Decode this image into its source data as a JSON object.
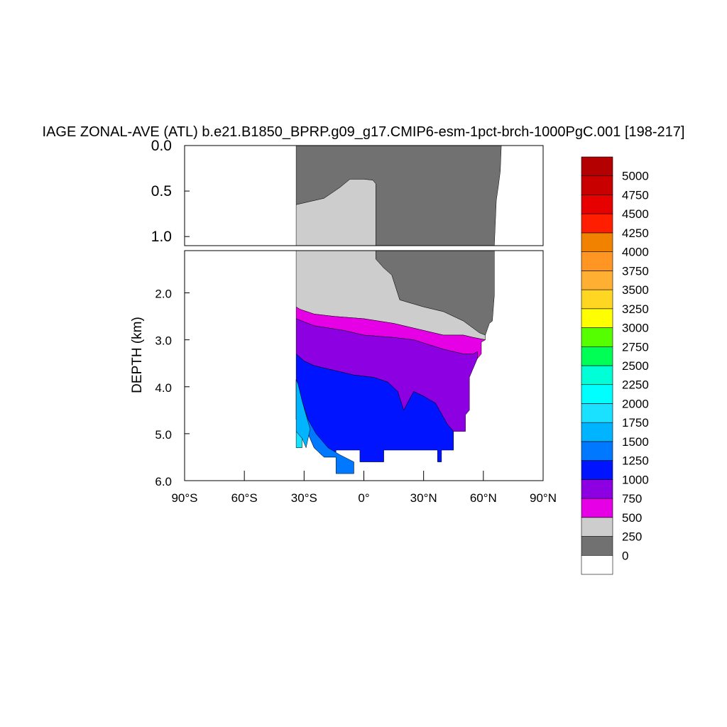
{
  "chart_data": {
    "type": "heatmap",
    "title": "IAGE ZONAL-AVE (ATL) b.e21.B1850_BPRP.g09_g17.CMIP6-esm-1pct-brch-1000PgC.001 [198-217]",
    "ylabel": "DEPTH (km)",
    "xlabel": "",
    "x_range": [
      -90,
      90
    ],
    "y_range_upper_km": [
      0.0,
      1.1
    ],
    "y_range_lower_km": [
      1.1,
      6.0
    ],
    "x_tick_values": [
      -90,
      -60,
      -30,
      0,
      30,
      60,
      90
    ],
    "x_tick_labels": [
      "90°S",
      "60°S",
      "30°S",
      "0°",
      "30°N",
      "60°N",
      "90°N"
    ],
    "y_ticks_upper": [
      {
        "value": 0.0,
        "label": "0.0"
      },
      {
        "value": 0.5,
        "label": "0.5"
      },
      {
        "value": 1.0,
        "label": "1.0"
      }
    ],
    "y_ticks_lower": [
      {
        "value": 2.0,
        "label": "2.0"
      },
      {
        "value": 3.0,
        "label": "3.0"
      },
      {
        "value": 4.0,
        "label": "4.0"
      },
      {
        "value": 5.0,
        "label": "5.0"
      },
      {
        "value": 6.0,
        "label": "6.0"
      }
    ],
    "colorbar": {
      "labels": [
        "0",
        "250",
        "500",
        "750",
        "1000",
        "1250",
        "1500",
        "1750",
        "2000",
        "2250",
        "2500",
        "2750",
        "3000",
        "3250",
        "3500",
        "3750",
        "4000",
        "4250",
        "4500",
        "4750",
        "5000"
      ],
      "colors": [
        "#ffffff",
        "#717171",
        "#cdcdcd",
        "#e600e6",
        "#8c00e1",
        "#0014ff",
        "#0078ff",
        "#00b4ff",
        "#19e1ff",
        "#00ffff",
        "#00ffd7",
        "#00ff55",
        "#55ff00",
        "#ffff00",
        "#ffd723",
        "#ffaf32",
        "#ff9623",
        "#f08200",
        "#ff1e00",
        "#e60000",
        "#c80000",
        "#b40000"
      ]
    },
    "regions": [
      {
        "range": "250-500",
        "color": "#717171",
        "boundary": [
          [
            -34,
            0
          ],
          [
            69,
            0
          ],
          [
            68.5,
            0.28
          ],
          [
            67.5,
            0.45
          ],
          [
            66.5,
            0.6
          ],
          [
            65.5,
            1.1
          ],
          [
            65.5,
            2.05
          ],
          [
            64.5,
            2.6
          ],
          [
            63,
            2.65
          ],
          [
            61,
            2.9
          ],
          [
            58,
            2.85
          ],
          [
            50,
            2.6
          ],
          [
            40,
            2.4
          ],
          [
            30,
            2.3
          ],
          [
            18,
            2.15
          ],
          [
            14,
            1.62
          ],
          [
            10,
            1.47
          ],
          [
            6,
            1.28
          ],
          [
            6,
            0.42
          ],
          [
            4.5,
            0.38
          ],
          [
            0,
            0.37
          ],
          [
            -7,
            0.37
          ],
          [
            -12,
            0.46
          ],
          [
            -20,
            0.58
          ],
          [
            -34,
            0.65
          ]
        ]
      },
      {
        "range": "500-750",
        "color": "#cdcdcd",
        "boundary": [
          [
            -34,
            0.65
          ],
          [
            -20,
            0.58
          ],
          [
            -12,
            0.46
          ],
          [
            -7,
            0.37
          ],
          [
            0,
            0.37
          ],
          [
            4.5,
            0.38
          ],
          [
            6,
            0.42
          ],
          [
            6,
            1.28
          ],
          [
            10,
            1.47
          ],
          [
            14,
            1.62
          ],
          [
            18,
            2.15
          ],
          [
            30,
            2.3
          ],
          [
            40,
            2.4
          ],
          [
            50,
            2.6
          ],
          [
            58,
            2.85
          ],
          [
            61,
            2.9
          ],
          [
            61,
            3.0
          ],
          [
            55,
            2.95
          ],
          [
            50,
            2.9
          ],
          [
            40,
            2.9
          ],
          [
            35,
            2.85
          ],
          [
            25,
            2.75
          ],
          [
            15,
            2.65
          ],
          [
            0,
            2.55
          ],
          [
            -15,
            2.5
          ],
          [
            -25,
            2.45
          ],
          [
            -32,
            2.35
          ],
          [
            -34,
            2.3
          ]
        ]
      },
      {
        "range": "750-1000",
        "color": "#e600e6",
        "boundary": [
          [
            -34,
            2.3
          ],
          [
            -32,
            2.35
          ],
          [
            -25,
            2.45
          ],
          [
            -15,
            2.5
          ],
          [
            0,
            2.55
          ],
          [
            15,
            2.65
          ],
          [
            25,
            2.75
          ],
          [
            35,
            2.85
          ],
          [
            40,
            2.9
          ],
          [
            50,
            2.9
          ],
          [
            55,
            2.95
          ],
          [
            61,
            3.0
          ],
          [
            59,
            3.05
          ],
          [
            59,
            3.3
          ],
          [
            57,
            3.4
          ],
          [
            57,
            3.25
          ],
          [
            55,
            3.3
          ],
          [
            50,
            3.3
          ],
          [
            40,
            3.2
          ],
          [
            25,
            3.0
          ],
          [
            15,
            2.95
          ],
          [
            0,
            2.9
          ],
          [
            -10,
            2.8
          ],
          [
            -25,
            2.7
          ],
          [
            -34,
            2.55
          ]
        ]
      },
      {
        "range": "1000-1250",
        "color": "#8c00e1",
        "boundary": [
          [
            -34,
            2.55
          ],
          [
            -25,
            2.7
          ],
          [
            -10,
            2.8
          ],
          [
            0,
            2.9
          ],
          [
            15,
            2.95
          ],
          [
            25,
            3.0
          ],
          [
            40,
            3.2
          ],
          [
            50,
            3.3
          ],
          [
            55,
            3.3
          ],
          [
            57,
            3.25
          ],
          [
            57,
            3.4
          ],
          [
            55,
            3.6
          ],
          [
            53,
            3.8
          ],
          [
            53,
            4.5
          ],
          [
            51,
            4.6
          ],
          [
            51,
            4.95
          ],
          [
            45,
            4.95
          ],
          [
            42,
            4.8
          ],
          [
            36,
            4.35
          ],
          [
            30,
            4.2
          ],
          [
            25,
            4.1
          ],
          [
            20,
            4.5
          ],
          [
            17,
            4.1
          ],
          [
            12,
            3.9
          ],
          [
            5,
            3.8
          ],
          [
            -5,
            3.75
          ],
          [
            -15,
            3.65
          ],
          [
            -25,
            3.55
          ],
          [
            -30,
            3.45
          ],
          [
            -34,
            3.3
          ]
        ]
      },
      {
        "range": "1250-1500",
        "color": "#0014ff",
        "boundary": [
          [
            -34,
            3.3
          ],
          [
            -30,
            3.45
          ],
          [
            -25,
            3.55
          ],
          [
            -15,
            3.65
          ],
          [
            -5,
            3.75
          ],
          [
            5,
            3.8
          ],
          [
            12,
            3.9
          ],
          [
            17,
            4.1
          ],
          [
            20,
            4.5
          ],
          [
            25,
            4.1
          ],
          [
            30,
            4.2
          ],
          [
            36,
            4.35
          ],
          [
            42,
            4.8
          ],
          [
            45,
            4.95
          ],
          [
            45,
            5.35
          ],
          [
            41,
            5.35
          ],
          [
            41,
            5.35
          ],
          [
            39,
            5.35
          ],
          [
            39,
            5.6
          ],
          [
            37,
            5.6
          ],
          [
            37,
            5.35
          ],
          [
            10,
            5.35
          ],
          [
            10,
            5.6
          ],
          [
            1,
            5.6
          ],
          [
            -2,
            5.6
          ],
          [
            -2,
            5.35
          ],
          [
            -10,
            5.35
          ],
          [
            -10,
            5.35
          ],
          [
            -14,
            5.35
          ],
          [
            -14,
            5.5
          ],
          [
            -20,
            5.5
          ],
          [
            -25,
            5.3
          ],
          [
            -28,
            5.0
          ],
          [
            -32,
            4.8
          ],
          [
            -34,
            4.7
          ]
        ]
      },
      {
        "range": "1500-1750",
        "color": "#0078ff",
        "boundary": [
          [
            -34,
            4.7
          ],
          [
            -32,
            4.8
          ],
          [
            -28,
            5.0
          ],
          [
            -25,
            5.3
          ],
          [
            -20,
            5.5
          ],
          [
            -14,
            5.5
          ],
          [
            -14,
            5.85
          ],
          [
            -5,
            5.85
          ],
          [
            -5,
            5.6
          ],
          [
            -12,
            5.45
          ],
          [
            -18,
            5.3
          ],
          [
            -24,
            5.0
          ],
          [
            -28,
            4.7
          ],
          [
            -31,
            4.3
          ],
          [
            -33,
            3.95
          ],
          [
            -34,
            3.85
          ]
        ]
      },
      {
        "range": "1750-2000",
        "color": "#00b4ff",
        "boundary": [
          [
            -34,
            3.85
          ],
          [
            -33,
            3.95
          ],
          [
            -31,
            4.3
          ],
          [
            -29,
            4.6
          ],
          [
            -27,
            4.9
          ],
          [
            -29,
            5.3
          ],
          [
            -31,
            5.1
          ],
          [
            -34,
            4.95
          ]
        ]
      },
      {
        "range": "2000-2250",
        "color": "#19e1ff",
        "boundary": [
          [
            -34,
            4.95
          ],
          [
            -31,
            5.1
          ],
          [
            -31,
            5.3
          ],
          [
            -34,
            5.3
          ]
        ]
      }
    ]
  }
}
